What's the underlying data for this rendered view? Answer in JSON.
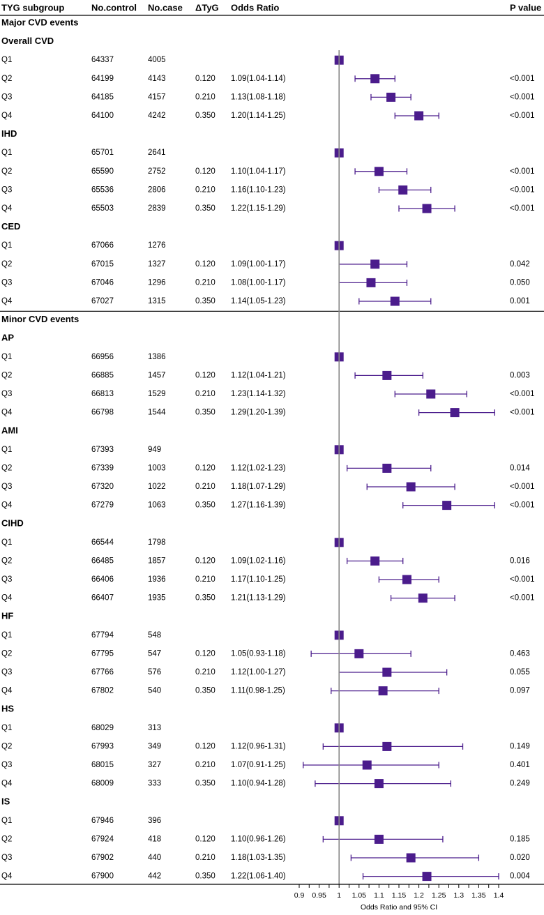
{
  "chart_data": {
    "type": "forest",
    "columns": {
      "subgroup": "TYG subgroup",
      "control": "No.control",
      "case": "No.case",
      "delta": "ΔTyG",
      "or": "Odds Ratio",
      "p": "P value"
    },
    "xlabel": "Odds Ratio and 95% CI",
    "xlim": [
      0.9,
      1.4
    ],
    "reference_line": 1,
    "xticks": [
      "0.9",
      "0.95",
      "1",
      "1.05",
      "1.1",
      "1.15",
      "1.2",
      "1.25",
      "1.3",
      "1.35",
      "1.4"
    ],
    "colors": {
      "marker": "#4b1c8c",
      "reference": "#888888"
    },
    "sections": [
      {
        "title": "Major CVD events",
        "groups": [
          {
            "name": "Overall CVD",
            "rows": [
              {
                "q": "Q1",
                "control": "64337",
                "case": "4005",
                "delta": "",
                "or_text": "",
                "p": "",
                "or": 1,
                "lo": 1,
                "hi": 1
              },
              {
                "q": "Q2",
                "control": "64199",
                "case": "4143",
                "delta": "0.120",
                "or_text": "1.09(1.04-1.14)",
                "p": "<0.001",
                "or": 1.09,
                "lo": 1.04,
                "hi": 1.14
              },
              {
                "q": "Q3",
                "control": "64185",
                "case": "4157",
                "delta": "0.210",
                "or_text": "1.13(1.08-1.18)",
                "p": "<0.001",
                "or": 1.13,
                "lo": 1.08,
                "hi": 1.18
              },
              {
                "q": "Q4",
                "control": "64100",
                "case": "4242",
                "delta": "0.350",
                "or_text": "1.20(1.14-1.25)",
                "p": "<0.001",
                "or": 1.2,
                "lo": 1.14,
                "hi": 1.25
              }
            ]
          },
          {
            "name": "IHD",
            "rows": [
              {
                "q": "Q1",
                "control": "65701",
                "case": "2641",
                "delta": "",
                "or_text": "",
                "p": "",
                "or": 1,
                "lo": 1,
                "hi": 1
              },
              {
                "q": "Q2",
                "control": "65590",
                "case": "2752",
                "delta": "0.120",
                "or_text": "1.10(1.04-1.17)",
                "p": "<0.001",
                "or": 1.1,
                "lo": 1.04,
                "hi": 1.17
              },
              {
                "q": "Q3",
                "control": "65536",
                "case": "2806",
                "delta": "0.210",
                "or_text": "1.16(1.10-1.23)",
                "p": "<0.001",
                "or": 1.16,
                "lo": 1.1,
                "hi": 1.23
              },
              {
                "q": "Q4",
                "control": "65503",
                "case": "2839",
                "delta": "0.350",
                "or_text": "1.22(1.15-1.29)",
                "p": "<0.001",
                "or": 1.22,
                "lo": 1.15,
                "hi": 1.29
              }
            ]
          },
          {
            "name": "CED",
            "rows": [
              {
                "q": "Q1",
                "control": "67066",
                "case": "1276",
                "delta": "",
                "or_text": "",
                "p": "",
                "or": 1,
                "lo": 1,
                "hi": 1
              },
              {
                "q": "Q2",
                "control": "67015",
                "case": "1327",
                "delta": "0.120",
                "or_text": "1.09(1.00-1.17)",
                "p": "0.042",
                "or": 1.09,
                "lo": 1.0,
                "hi": 1.17
              },
              {
                "q": "Q3",
                "control": "67046",
                "case": "1296",
                "delta": "0.210",
                "or_text": "1.08(1.00-1.17)",
                "p": "0.050",
                "or": 1.08,
                "lo": 1.0,
                "hi": 1.17
              },
              {
                "q": "Q4",
                "control": "67027",
                "case": "1315",
                "delta": "0.350",
                "or_text": "1.14(1.05-1.23)",
                "p": "0.001",
                "or": 1.14,
                "lo": 1.05,
                "hi": 1.23
              }
            ]
          }
        ]
      },
      {
        "title": "Minor CVD events",
        "groups": [
          {
            "name": "AP",
            "rows": [
              {
                "q": "Q1",
                "control": "66956",
                "case": "1386",
                "delta": "",
                "or_text": "",
                "p": "",
                "or": 1,
                "lo": 1,
                "hi": 1
              },
              {
                "q": "Q2",
                "control": "66885",
                "case": "1457",
                "delta": "0.120",
                "or_text": "1.12(1.04-1.21)",
                "p": "0.003",
                "or": 1.12,
                "lo": 1.04,
                "hi": 1.21
              },
              {
                "q": "Q3",
                "control": "66813",
                "case": "1529",
                "delta": "0.210",
                "or_text": "1.23(1.14-1.32)",
                "p": "<0.001",
                "or": 1.23,
                "lo": 1.14,
                "hi": 1.32
              },
              {
                "q": "Q4",
                "control": "66798",
                "case": "1544",
                "delta": "0.350",
                "or_text": "1.29(1.20-1.39)",
                "p": "<0.001",
                "or": 1.29,
                "lo": 1.2,
                "hi": 1.39
              }
            ]
          },
          {
            "name": "AMI",
            "rows": [
              {
                "q": "Q1",
                "control": "67393",
                "case": "949",
                "delta": "",
                "or_text": "",
                "p": "",
                "or": 1,
                "lo": 1,
                "hi": 1
              },
              {
                "q": "Q2",
                "control": "67339",
                "case": "1003",
                "delta": "0.120",
                "or_text": "1.12(1.02-1.23)",
                "p": "0.014",
                "or": 1.12,
                "lo": 1.02,
                "hi": 1.23
              },
              {
                "q": "Q3",
                "control": "67320",
                "case": "1022",
                "delta": "0.210",
                "or_text": "1.18(1.07-1.29)",
                "p": "<0.001",
                "or": 1.18,
                "lo": 1.07,
                "hi": 1.29
              },
              {
                "q": "Q4",
                "control": "67279",
                "case": "1063",
                "delta": "0.350",
                "or_text": "1.27(1.16-1.39)",
                "p": "<0.001",
                "or": 1.27,
                "lo": 1.16,
                "hi": 1.39
              }
            ]
          },
          {
            "name": "CIHD",
            "rows": [
              {
                "q": "Q1",
                "control": "66544",
                "case": "1798",
                "delta": "",
                "or_text": "",
                "p": "",
                "or": 1,
                "lo": 1,
                "hi": 1
              },
              {
                "q": "Q2",
                "control": "66485",
                "case": "1857",
                "delta": "0.120",
                "or_text": "1.09(1.02-1.16)",
                "p": "0.016",
                "or": 1.09,
                "lo": 1.02,
                "hi": 1.16
              },
              {
                "q": "Q3",
                "control": "66406",
                "case": "1936",
                "delta": "0.210",
                "or_text": "1.17(1.10-1.25)",
                "p": "<0.001",
                "or": 1.17,
                "lo": 1.1,
                "hi": 1.25
              },
              {
                "q": "Q4",
                "control": "66407",
                "case": "1935",
                "delta": "0.350",
                "or_text": "1.21(1.13-1.29)",
                "p": "<0.001",
                "or": 1.21,
                "lo": 1.13,
                "hi": 1.29
              }
            ]
          },
          {
            "name": "HF",
            "rows": [
              {
                "q": "Q1",
                "control": "67794",
                "case": "548",
                "delta": "",
                "or_text": "",
                "p": "",
                "or": 1,
                "lo": 1,
                "hi": 1
              },
              {
                "q": "Q2",
                "control": "67795",
                "case": "547",
                "delta": "0.120",
                "or_text": "1.05(0.93-1.18)",
                "p": "0.463",
                "or": 1.05,
                "lo": 0.93,
                "hi": 1.18
              },
              {
                "q": "Q3",
                "control": "67766",
                "case": "576",
                "delta": "0.210",
                "or_text": "1.12(1.00-1.27)",
                "p": "0.055",
                "or": 1.12,
                "lo": 1.0,
                "hi": 1.27
              },
              {
                "q": "Q4",
                "control": "67802",
                "case": "540",
                "delta": "0.350",
                "or_text": "1.11(0.98-1.25)",
                "p": "0.097",
                "or": 1.11,
                "lo": 0.98,
                "hi": 1.25
              }
            ]
          },
          {
            "name": "HS",
            "rows": [
              {
                "q": "Q1",
                "control": "68029",
                "case": "313",
                "delta": "",
                "or_text": "",
                "p": "",
                "or": 1,
                "lo": 1,
                "hi": 1
              },
              {
                "q": "Q2",
                "control": "67993",
                "case": "349",
                "delta": "0.120",
                "or_text": "1.12(0.96-1.31)",
                "p": "0.149",
                "or": 1.12,
                "lo": 0.96,
                "hi": 1.31
              },
              {
                "q": "Q3",
                "control": "68015",
                "case": "327",
                "delta": "0.210",
                "or_text": "1.07(0.91-1.25)",
                "p": "0.401",
                "or": 1.07,
                "lo": 0.91,
                "hi": 1.25
              },
              {
                "q": "Q4",
                "control": "68009",
                "case": "333",
                "delta": "0.350",
                "or_text": "1.10(0.94-1.28)",
                "p": "0.249",
                "or": 1.1,
                "lo": 0.94,
                "hi": 1.28
              }
            ]
          },
          {
            "name": "IS",
            "rows": [
              {
                "q": "Q1",
                "control": "67946",
                "case": "396",
                "delta": "",
                "or_text": "",
                "p": "",
                "or": 1,
                "lo": 1,
                "hi": 1
              },
              {
                "q": "Q2",
                "control": "67924",
                "case": "418",
                "delta": "0.120",
                "or_text": "1.10(0.96-1.26)",
                "p": "0.185",
                "or": 1.1,
                "lo": 0.96,
                "hi": 1.26
              },
              {
                "q": "Q3",
                "control": "67902",
                "case": "440",
                "delta": "0.210",
                "or_text": "1.18(1.03-1.35)",
                "p": "0.020",
                "or": 1.18,
                "lo": 1.03,
                "hi": 1.35
              },
              {
                "q": "Q4",
                "control": "67900",
                "case": "442",
                "delta": "0.350",
                "or_text": "1.22(1.06-1.40)",
                "p": "0.004",
                "or": 1.22,
                "lo": 1.06,
                "hi": 1.4
              }
            ]
          }
        ]
      }
    ]
  }
}
